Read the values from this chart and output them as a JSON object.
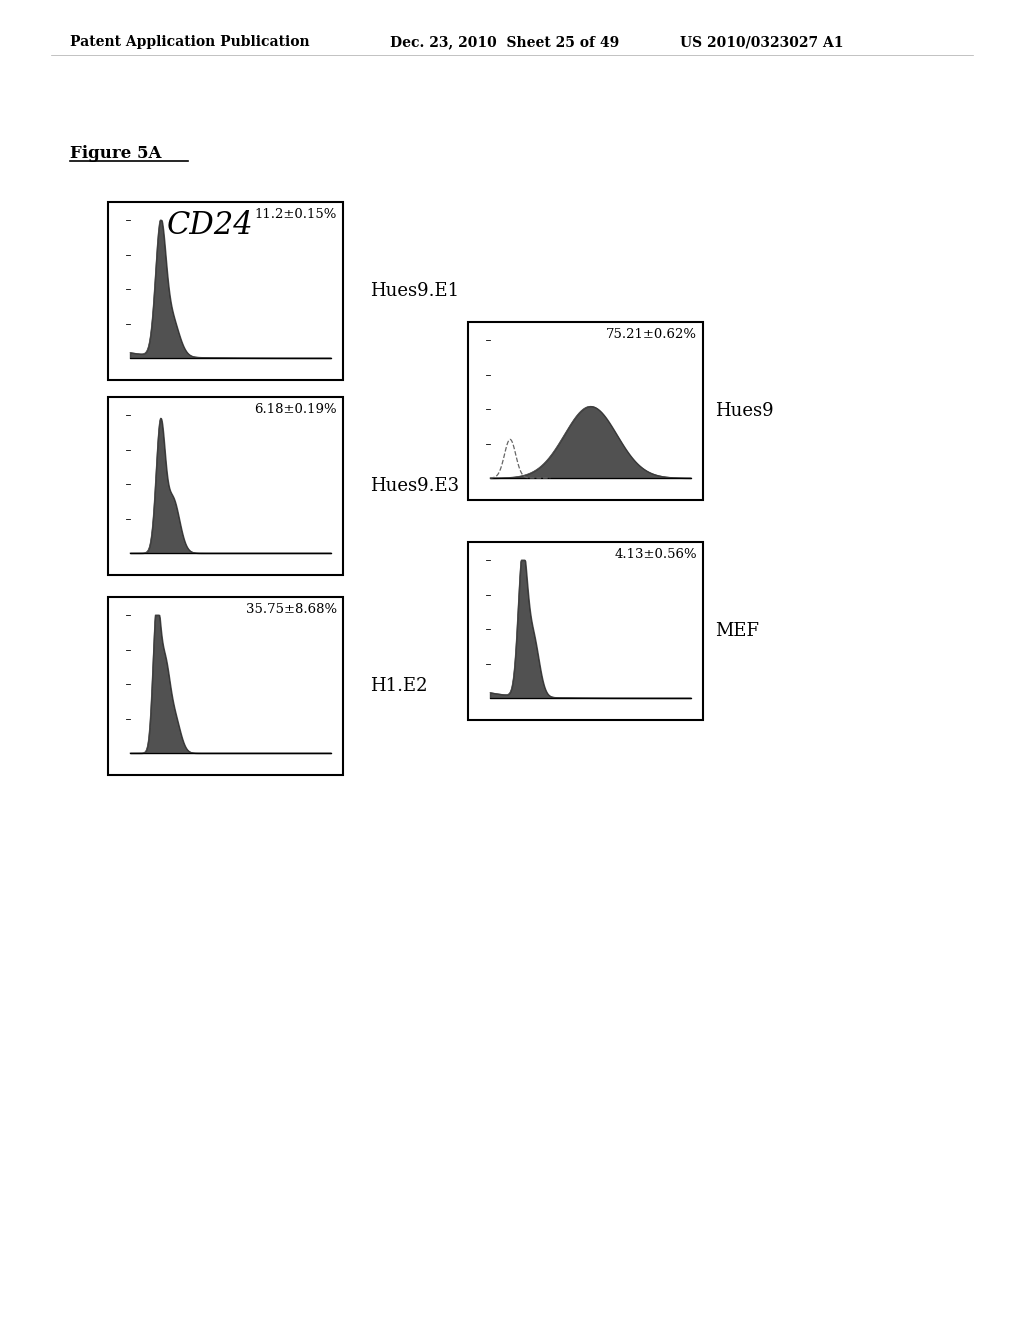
{
  "header_left": "Patent Application Publication",
  "header_mid": "Dec. 23, 2010  Sheet 25 of 49",
  "header_right": "US 2010/0323027 A1",
  "figure_label": "Figure 5A",
  "cd24_label": "CD24",
  "panels_left": [
    {
      "label": "11.2±0.15%",
      "side_label": "Hues9.E1"
    },
    {
      "label": "6.18±0.19%",
      "side_label": "Hues9.E3"
    },
    {
      "label": "35.75±8.68%",
      "side_label": "H1.E2"
    }
  ],
  "panels_right": [
    {
      "label": "75.21±0.62%",
      "side_label": "Hues9"
    },
    {
      "label": "4.13±0.56%",
      "side_label": "MEF"
    }
  ],
  "bg_color": "#ffffff",
  "panel_border_color": "#000000",
  "text_color": "#000000",
  "hist_color": "#444444"
}
